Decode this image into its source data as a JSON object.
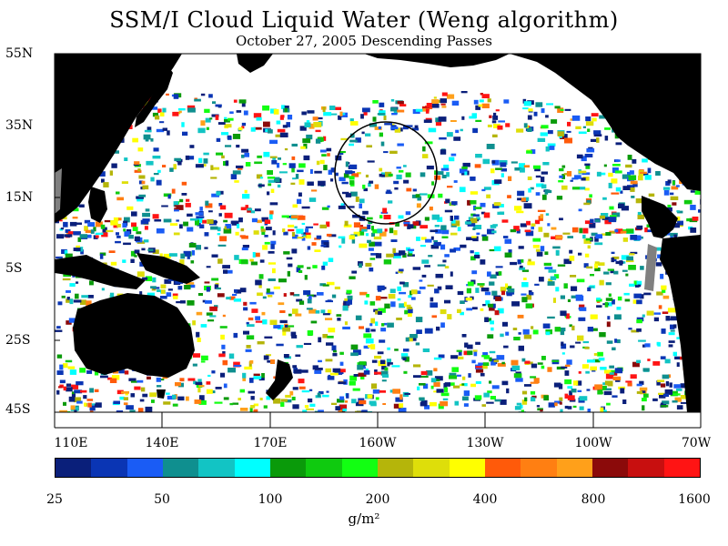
{
  "title": "SSM/I Cloud Liquid Water (Weng algorithm)",
  "subtitle": "October 27, 2005  Descending Passes",
  "lat_labels": [
    "55N",
    "35N",
    "15N",
    "5S",
    "25S",
    "45S"
  ],
  "lon_labels": [
    "110E",
    "140E",
    "170E",
    "160W",
    "130W",
    "100W",
    "70W"
  ],
  "colorbar": {
    "colors": [
      "#0a1f7a",
      "#0a35b4",
      "#1a5cf5",
      "#0f8f8f",
      "#12c4c4",
      "#00ffff",
      "#0a9a0a",
      "#0fca0f",
      "#12ff12",
      "#b5b50a",
      "#dede0a",
      "#ffff00",
      "#ff5a0a",
      "#ff7f12",
      "#ffa01a",
      "#8b0a0a",
      "#c80f0f",
      "#ff1414"
    ],
    "labels": [
      "25",
      "50",
      "100",
      "200",
      "400",
      "800",
      "1600"
    ],
    "units": "g/m²"
  },
  "map_colors": {
    "land": "#000000",
    "missing": "#808080",
    "clear_ocean": "#ffffff",
    "frame": "#000000"
  }
}
